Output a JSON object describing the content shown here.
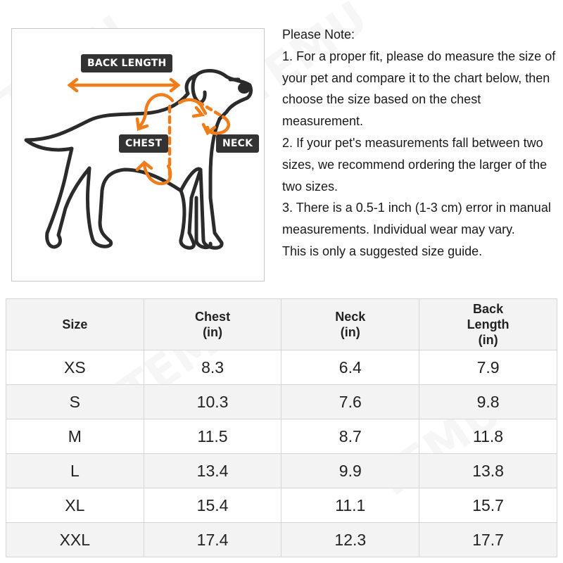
{
  "diagram": {
    "labels": {
      "back_length": "BACK LENGTH",
      "chest": "CHEST",
      "neck": "NECK"
    },
    "accent_color": "#f07d1a",
    "outline_color": "#2b2b2b",
    "watermark": "TEMU"
  },
  "note": {
    "lines": [
      "Please Note:",
      "1. For a proper fit, please do measure the size of your pet and compare it to the chart below, then choose the size based on the chest measurement.",
      "2. If your pet's measurements fall between two sizes, we recommend ordering the larger of the two sizes.",
      "3. There is a 0.5-1 inch (1-3 cm) error in manual measurements. Individual wear may vary.",
      "This is only a suggested size guide."
    ]
  },
  "table": {
    "headers": [
      [
        "Size"
      ],
      [
        "Chest",
        "(in)"
      ],
      [
        "Neck",
        "(in)"
      ],
      [
        "Back",
        "Length",
        "(in)"
      ]
    ],
    "rows": [
      [
        "XS",
        "8.3",
        "6.4",
        "7.9"
      ],
      [
        "S",
        "10.3",
        "7.6",
        "9.8"
      ],
      [
        "M",
        "11.5",
        "8.7",
        "11.8"
      ],
      [
        "L",
        "13.4",
        "9.9",
        "13.8"
      ],
      [
        "XL",
        "15.4",
        "11.1",
        "15.7"
      ],
      [
        "XXL",
        "17.4",
        "12.3",
        "17.7"
      ]
    ]
  }
}
